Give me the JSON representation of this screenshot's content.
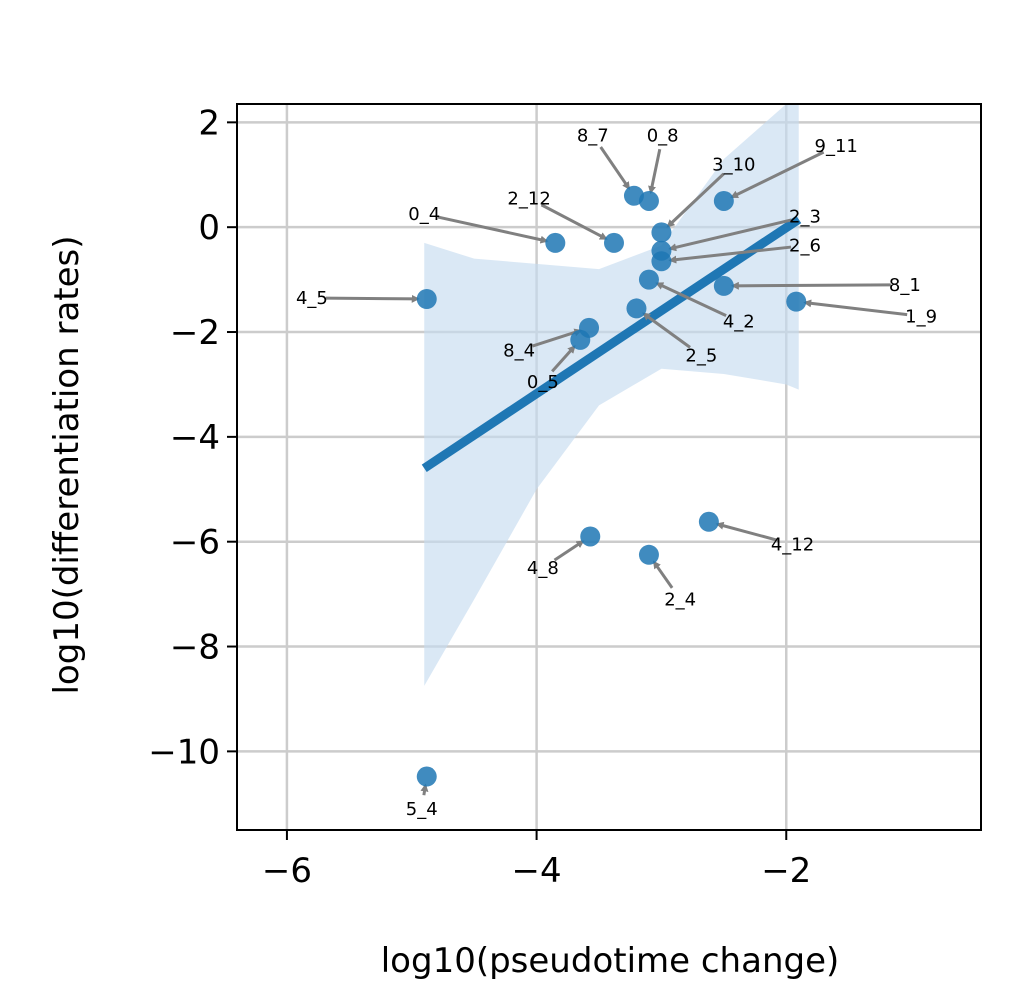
{
  "chart_data": {
    "type": "scatter",
    "title": "",
    "xlabel": "log10(pseudotime change)",
    "ylabel": "log10(differentiation rates)",
    "xlim": [
      -6.4,
      -0.44
    ],
    "ylim": [
      -11.5,
      2.35
    ],
    "xticks": [
      -6,
      -4,
      -2
    ],
    "xtick_labels": [
      "−6",
      "−4",
      "−2"
    ],
    "yticks": [
      2,
      0,
      -2,
      -4,
      -6,
      -8,
      -10
    ],
    "ytick_labels": [
      "2",
      "0",
      "−2",
      "−4",
      "−6",
      "−8",
      "−10"
    ],
    "grid": true,
    "colors": {
      "point": "#1f77b4",
      "regression_line": "#1f77b4",
      "confidence_band": "#c6dbef",
      "arrow": "#808080",
      "grid": "#cccccc",
      "axis": "#000000"
    },
    "points": [
      {
        "label": "8_7",
        "x": -3.22,
        "y": 0.6,
        "label_x": -3.55,
        "label_y": 1.75
      },
      {
        "label": "0_8",
        "x": -3.1,
        "y": 0.5,
        "label_x": -2.99,
        "label_y": 1.75
      },
      {
        "label": "3_10",
        "x": -3.0,
        "y": -0.1,
        "label_x": -2.42,
        "label_y": 1.2
      },
      {
        "label": "9_11",
        "x": -2.5,
        "y": 0.5,
        "label_x": -1.6,
        "label_y": 1.55
      },
      {
        "label": "0_4",
        "x": -3.85,
        "y": -0.3,
        "label_x": -4.9,
        "label_y": 0.25
      },
      {
        "label": "2_12",
        "x": -3.38,
        "y": -0.3,
        "label_x": -4.06,
        "label_y": 0.55
      },
      {
        "label": "2_3",
        "x": -3.0,
        "y": -0.45,
        "label_x": -1.85,
        "label_y": 0.2
      },
      {
        "label": "2_6",
        "x": -3.0,
        "y": -0.65,
        "label_x": -1.85,
        "label_y": -0.35
      },
      {
        "label": "4_5",
        "x": -4.88,
        "y": -1.37,
        "label_x": -5.8,
        "label_y": -1.35
      },
      {
        "label": "8_1",
        "x": -2.5,
        "y": -1.12,
        "label_x": -1.05,
        "label_y": -1.1
      },
      {
        "label": "1_9",
        "x": -1.92,
        "y": -1.42,
        "label_x": -0.92,
        "label_y": -1.7
      },
      {
        "label": "4_2",
        "x": -3.1,
        "y": -1.0,
        "label_x": -2.38,
        "label_y": -1.8
      },
      {
        "label": "2_5",
        "x": -3.2,
        "y": -1.55,
        "label_x": -2.68,
        "label_y": -2.45
      },
      {
        "label": "8_4",
        "x": -3.58,
        "y": -1.92,
        "label_x": -4.14,
        "label_y": -2.35
      },
      {
        "label": "0_5",
        "x": -3.65,
        "y": -2.15,
        "label_x": -3.95,
        "label_y": -2.95
      },
      {
        "label": "4_12",
        "x": -2.62,
        "y": -5.62,
        "label_x": -1.95,
        "label_y": -6.05
      },
      {
        "label": "4_8",
        "x": -3.57,
        "y": -5.9,
        "label_x": -3.95,
        "label_y": -6.5
      },
      {
        "label": "2_4",
        "x": -3.1,
        "y": -6.25,
        "label_x": -2.85,
        "label_y": -7.1
      },
      {
        "label": "5_4",
        "x": -4.88,
        "y": -10.48,
        "label_x": -4.92,
        "label_y": -11.1
      }
    ],
    "regression_line": {
      "x": [
        -4.9,
        -1.9
      ],
      "y": [
        -4.6,
        0.15
      ]
    },
    "confidence_band": {
      "x": [
        -4.9,
        -4.5,
        -4.0,
        -3.5,
        -3.0,
        -2.5,
        -2.0,
        -1.9
      ],
      "upper": [
        -0.3,
        -0.6,
        -0.7,
        -0.8,
        -0.35,
        1.3,
        2.35,
        2.35
      ],
      "lower": [
        -8.75,
        -7.1,
        -5.0,
        -3.4,
        -2.7,
        -2.8,
        -3.0,
        -3.1
      ]
    }
  }
}
